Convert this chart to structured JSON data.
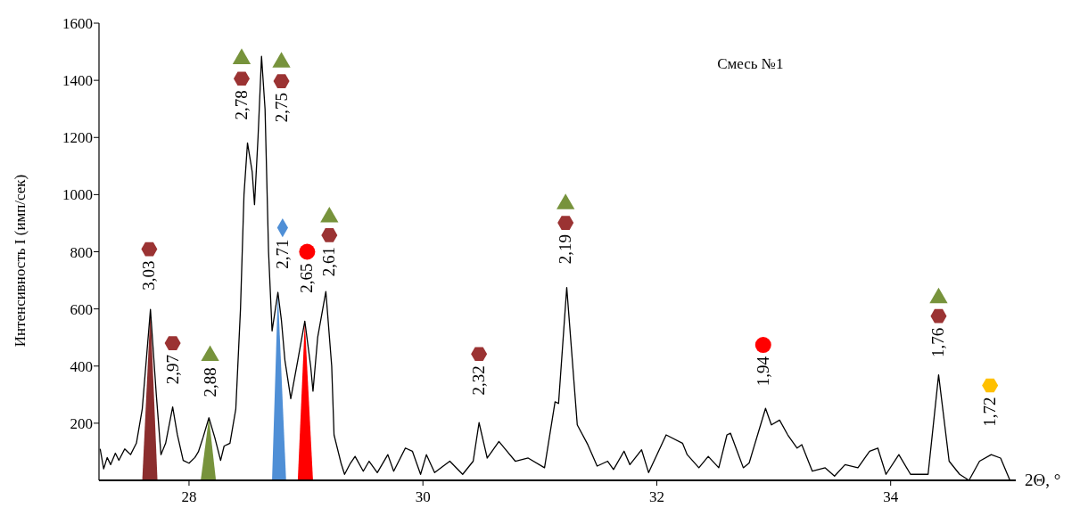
{
  "chart_data": {
    "type": "line",
    "title": "Смесь №1",
    "xlabel": "2Θ, °",
    "ylabel": "Интенсивность I (имп/сек)",
    "xlim": [
      27.23,
      35.07
    ],
    "xticks": [
      28,
      30,
      32,
      34
    ],
    "ylim": [
      0,
      1600
    ],
    "yticks": [
      200,
      400,
      600,
      800,
      1000,
      1200,
      1400,
      1600
    ],
    "grid": false,
    "series": [
      {
        "type": "area",
        "color": "#8b2e2e",
        "x": [
          27.6,
          27.67,
          27.73
        ],
        "values": [
          0,
          598,
          0
        ]
      },
      {
        "type": "area",
        "color": "#77933c",
        "x": [
          28.1,
          28.17,
          28.23
        ],
        "values": [
          0,
          219,
          0
        ]
      },
      {
        "type": "area",
        "color": "#4f8fd6",
        "x": [
          28.71,
          28.76,
          28.83
        ],
        "values": [
          0,
          658,
          0
        ]
      },
      {
        "type": "area",
        "color": "#ff0000",
        "x": [
          28.93,
          28.99,
          29.06
        ],
        "values": [
          0,
          557,
          0
        ]
      },
      {
        "color": "#000000",
        "marker": "none",
        "line_style": "solid",
        "x": [
          27.24,
          27.27,
          27.3,
          27.33,
          27.37,
          27.4,
          27.45,
          27.5,
          27.55,
          27.6,
          27.67,
          27.72,
          27.76,
          27.8,
          27.86,
          27.9,
          27.95,
          28.0,
          28.05,
          28.08,
          28.12,
          28.17,
          28.22,
          28.27,
          28.3,
          28.35,
          28.4,
          28.44,
          28.47,
          28.5,
          28.54,
          28.56,
          28.59,
          28.62,
          28.65,
          28.68,
          28.71,
          28.76,
          28.79,
          28.82,
          28.87,
          28.93,
          28.99,
          29.04,
          29.06,
          29.1,
          29.17,
          29.22,
          29.24,
          29.3,
          29.33,
          29.38,
          29.42,
          29.49,
          29.54,
          29.61,
          29.7,
          29.75,
          29.85,
          29.91,
          29.98,
          30.03,
          30.1,
          30.23,
          30.34,
          30.43,
          30.48,
          30.55,
          30.65,
          30.79,
          30.9,
          31.04,
          31.13,
          31.16,
          31.23,
          31.32,
          31.41,
          31.49,
          31.58,
          31.63,
          31.72,
          31.77,
          31.87,
          31.93,
          32.08,
          32.22,
          32.26,
          32.36,
          32.44,
          32.53,
          32.6,
          32.63,
          32.74,
          32.79,
          32.93,
          32.98,
          33.05,
          33.12,
          33.2,
          33.24,
          33.33,
          33.44,
          33.52,
          33.61,
          33.72,
          33.82,
          33.89,
          33.96,
          34.07,
          34.17,
          34.32,
          34.41,
          34.5,
          34.59,
          34.67,
          34.76,
          34.86,
          34.94,
          35.02
        ],
        "values": [
          110,
          40,
          80,
          55,
          95,
          70,
          110,
          90,
          130,
          250,
          598,
          300,
          90,
          130,
          257,
          160,
          70,
          60,
          80,
          100,
          150,
          219,
          150,
          70,
          120,
          130,
          250,
          600,
          1000,
          1181,
          1080,
          965,
          1200,
          1484,
          1300,
          800,
          523,
          658,
          560,
          420,
          286,
          420,
          557,
          400,
          312,
          500,
          661,
          400,
          159,
          60,
          21,
          60,
          84,
          32,
          67,
          27,
          90,
          32,
          113,
          102,
          21,
          90,
          27,
          67,
          21,
          67,
          202,
          78,
          136,
          67,
          78,
          44,
          275,
          269,
          675,
          194,
          125,
          50,
          67,
          38,
          102,
          55,
          107,
          27,
          159,
          130,
          90,
          44,
          84,
          44,
          159,
          165,
          44,
          61,
          252,
          194,
          211,
          159,
          113,
          125,
          32,
          44,
          15,
          55,
          44,
          102,
          113,
          21,
          90,
          21,
          21,
          369,
          67,
          21,
          0,
          67,
          90,
          78,
          0
        ]
      },
      {
        "type": "scatter",
        "color": "#9b3333",
        "x": [
          27.66,
          27.86,
          28.45,
          28.79,
          29.2,
          30.48,
          31.22,
          34.41
        ],
        "values": [
          809,
          480,
          1406,
          1397,
          858,
          442,
          901,
          575
        ]
      },
      {
        "type": "scatter",
        "color": "#77933c",
        "marker": "triangle",
        "x": [
          28.18,
          28.45,
          28.79,
          29.2,
          31.22,
          34.41
        ],
        "values": [
          436,
          1475,
          1463,
          921,
          967,
          638
        ]
      },
      {
        "type": "scatter",
        "color": "#4f8fd6",
        "marker": "diamond",
        "x": [
          28.8
        ],
        "values": [
          884
        ]
      },
      {
        "type": "scatter",
        "color": "#ff0000",
        "marker": "circle",
        "x": [
          29.01,
          32.91
        ],
        "values": [
          800,
          474
        ]
      },
      {
        "type": "scatter",
        "color": "#ffc000",
        "x": [
          34.85
        ],
        "values": [
          332
        ]
      }
    ],
    "annotations": [
      {
        "text": "3,03",
        "x": 27.66,
        "y": 809
      },
      {
        "text": "2,97",
        "x": 27.86,
        "y": 480
      },
      {
        "text": "2,88",
        "x": 28.18,
        "y": 436
      },
      {
        "text": "2,78",
        "x": 28.45,
        "y": 1406
      },
      {
        "text": "2,75",
        "x": 28.79,
        "y": 1397
      },
      {
        "text": "2,71",
        "x": 28.8,
        "y": 884
      },
      {
        "text": "2,65",
        "x": 29.01,
        "y": 800
      },
      {
        "text": "2,61",
        "x": 29.2,
        "y": 858
      },
      {
        "text": "2,32",
        "x": 30.48,
        "y": 442
      },
      {
        "text": "2,19",
        "x": 31.22,
        "y": 901
      },
      {
        "text": "1,94",
        "x": 32.91,
        "y": 474
      },
      {
        "text": "1,76",
        "x": 34.41,
        "y": 575
      },
      {
        "text": "1,72",
        "x": 34.85,
        "y": 332
      }
    ]
  }
}
